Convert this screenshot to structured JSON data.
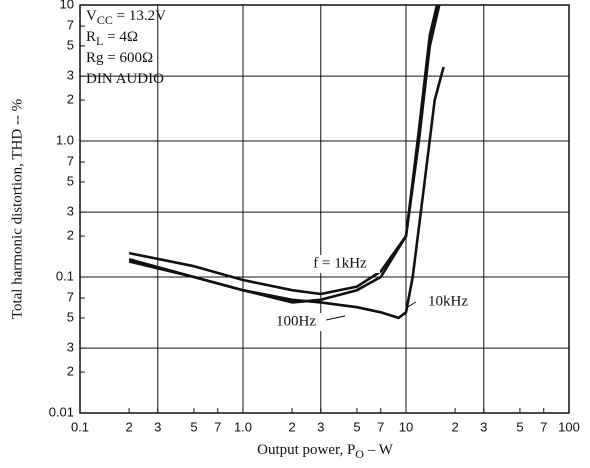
{
  "chart_data": {
    "type": "line",
    "log_x": true,
    "log_y": true,
    "grid": true,
    "xlabel": {
      "main": "Output power, P",
      "sub": "O",
      "rest": " – W"
    },
    "ylabel": "Total harmonic distortion, THD -- %",
    "xlim": [
      0.1,
      100
    ],
    "ylim": [
      0.01,
      10
    ],
    "xticks": [
      0.1,
      {
        "value": 0.2,
        "label": "2"
      },
      {
        "value": 0.3,
        "label": "3"
      },
      {
        "value": 0.5,
        "label": "5"
      },
      {
        "value": 0.7,
        "label": "7"
      },
      {
        "value": 1,
        "label": "1.0"
      },
      2,
      3,
      5,
      7,
      10,
      {
        "value": 20,
        "label": "2"
      },
      {
        "value": 30,
        "label": "3"
      },
      {
        "value": 50,
        "label": "5"
      },
      {
        "value": 70,
        "label": "7"
      },
      100
    ],
    "yticks": [
      0.01,
      {
        "value": 0.02,
        "label": "2"
      },
      {
        "value": 0.03,
        "label": "3"
      },
      {
        "value": 0.05,
        "label": "5"
      },
      {
        "value": 0.07,
        "label": "7"
      },
      0.1,
      {
        "value": 0.2,
        "label": "2"
      },
      {
        "value": 0.3,
        "label": "3"
      },
      {
        "value": 0.5,
        "label": "5"
      },
      {
        "value": 0.7,
        "label": "7"
      },
      {
        "value": 1,
        "label": "1.0"
      },
      2,
      3,
      5,
      7,
      10
    ],
    "xgrid": [
      0.3,
      1,
      3,
      10,
      30
    ],
    "ygrid": [
      0.03,
      0.1,
      0.3,
      1,
      3
    ],
    "annotations": [
      {
        "main": "V",
        "sub": "CC",
        "rest": " = 13.2V"
      },
      {
        "main": "R",
        "sub": "L",
        "rest": " = 4Ω"
      },
      {
        "main": "Rg = 600Ω",
        "sub": "",
        "rest": ""
      },
      {
        "main": "DIN AUDIO",
        "sub": "",
        "rest": ""
      }
    ],
    "series": [
      {
        "name": "f = 1kHz",
        "color": "#111111",
        "x": [
          0.2,
          0.5,
          1,
          2,
          3,
          5,
          7,
          10,
          12,
          14,
          16
        ],
        "values": [
          0.15,
          0.12,
          0.095,
          0.08,
          0.075,
          0.085,
          0.11,
          0.2,
          1.0,
          5,
          10
        ]
      },
      {
        "name": "100Hz",
        "color": "#111111",
        "x": [
          0.2,
          0.5,
          1,
          2,
          3,
          5,
          7,
          10,
          12,
          14,
          15.5
        ],
        "values": [
          0.135,
          0.1,
          0.08,
          0.065,
          0.068,
          0.08,
          0.1,
          0.2,
          1.2,
          6,
          10
        ]
      },
      {
        "name": "10kHz",
        "color": "#111111",
        "x": [
          0.2,
          0.5,
          1,
          2,
          3,
          5,
          7,
          9,
          10,
          11,
          13,
          15,
          17
        ],
        "values": [
          0.13,
          0.1,
          0.08,
          0.068,
          0.065,
          0.06,
          0.055,
          0.05,
          0.055,
          0.1,
          0.5,
          2,
          3.5
        ]
      }
    ]
  }
}
